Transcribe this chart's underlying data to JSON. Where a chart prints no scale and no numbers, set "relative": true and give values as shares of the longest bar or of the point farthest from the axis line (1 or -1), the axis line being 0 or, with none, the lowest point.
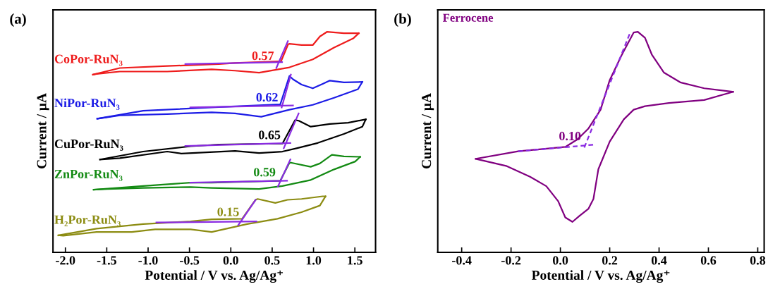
{
  "chart_data": [
    {
      "type": "line",
      "title": "(a)",
      "xlabel": "Potential / V vs. Ag/Ag⁺",
      "ylabel": "Current / μA",
      "relative": true,
      "legend": false,
      "grid": false,
      "xlim": [
        -2.15,
        1.75
      ],
      "xticks": [
        {
          "value": -2,
          "label": "-2.0"
        },
        {
          "value": -1.5,
          "label": "-1.5"
        },
        {
          "value": -1,
          "label": "-1.0"
        },
        {
          "value": -0.5,
          "label": "-0.5"
        },
        {
          "value": 0,
          "label": "0.0"
        },
        {
          "value": 0.5,
          "label": "0.5"
        },
        {
          "value": 1,
          "label": "1.0"
        },
        {
          "value": 1.5,
          "label": "1.5"
        }
      ],
      "annotations": [
        {
          "text": "0.57",
          "x": 0.57,
          "y": 0.847
        },
        {
          "text": "0.62",
          "x": 0.62,
          "y": 0.659
        },
        {
          "text": "0.65",
          "x": 0.65,
          "y": 0.488
        },
        {
          "text": "0.59",
          "x": 0.59,
          "y": 0.319
        },
        {
          "text": "0.15",
          "x": 0.15,
          "y": 0.139
        }
      ],
      "series": [
        {
          "name": "CoPor-RuN₃",
          "color": "#ee1c1c",
          "x": [
            -1.667,
            -1.342,
            -0.769,
            -0.145,
            0.051,
            0.564,
            0.607,
            0.692,
            0.709,
            0.855,
            0.991,
            1.077,
            1.162,
            1.368,
            1.547
          ],
          "values": [
            0.806,
            0.836,
            0.845,
            0.854,
            0.859,
            0.866,
            0.866,
            0.943,
            0.946,
            0.94,
            0.94,
            0.979,
            1.0,
            0.994,
            0.994
          ]
        },
        {
          "color": "#ee1c1c",
          "x": [
            -1.667,
            -1.624,
            -1.342,
            -0.769,
            -0.231,
            0.051,
            0.342,
            0.709,
            0.991,
            1.248,
            1.479,
            1.547
          ],
          "values": [
            0.806,
            0.809,
            0.82,
            0.82,
            0.83,
            0.824,
            0.815,
            0.839,
            0.875,
            0.929,
            0.97,
            0.994
          ]
        },
        {
          "name": "NiPor-RuN₃",
          "color": "#1c1ce6",
          "x": [
            -1.615,
            -1.06,
            -0.145,
            0.051,
            0.598,
            0.709,
            0.752,
            0.855,
            0.991,
            1.111,
            1.197,
            1.368,
            1.59
          ],
          "values": [
            0.606,
            0.642,
            0.659,
            0.662,
            0.671,
            0.8,
            0.785,
            0.761,
            0.744,
            0.764,
            0.779,
            0.771,
            0.773
          ]
        },
        {
          "color": "#1c1ce6",
          "x": [
            -1.615,
            -1.342,
            -0.769,
            -0.231,
            0.051,
            0.368,
            0.709,
            0.991,
            1.248,
            1.538,
            1.59
          ],
          "values": [
            0.606,
            0.621,
            0.627,
            0.635,
            0.63,
            0.615,
            0.647,
            0.669,
            0.701,
            0.74,
            0.773
          ]
        },
        {
          "name": "CuPor-RuN₃",
          "color": "#000000",
          "x": [
            -1.581,
            -1.06,
            -0.487,
            -0.145,
            0.624,
            0.778,
            0.821,
            0.966,
            1.077,
            1.197,
            1.419,
            1.632
          ],
          "values": [
            0.421,
            0.457,
            0.481,
            0.489,
            0.493,
            0.6,
            0.597,
            0.57,
            0.576,
            0.582,
            0.588,
            0.603
          ]
        },
        {
          "color": "#000000",
          "x": [
            -1.581,
            -1.342,
            -0.769,
            -0.598,
            0.051,
            0.342,
            0.624,
            0.795,
            1.051,
            1.368,
            1.59,
            1.632
          ],
          "values": [
            0.421,
            0.427,
            0.457,
            0.448,
            0.46,
            0.45,
            0.457,
            0.472,
            0.496,
            0.537,
            0.57,
            0.603
          ]
        },
        {
          "name": "ZnPor-RuN₃",
          "color": "#138a13",
          "x": [
            -1.658,
            -1.06,
            -0.487,
            -0.231,
            0.598,
            0.709,
            0.735,
            0.966,
            1.077,
            1.222,
            1.368,
            1.564
          ],
          "values": [
            0.284,
            0.301,
            0.316,
            0.316,
            0.325,
            0.406,
            0.406,
            0.388,
            0.403,
            0.442,
            0.435,
            0.433
          ]
        },
        {
          "color": "#138a13",
          "x": [
            -1.658,
            -1.487,
            -1.06,
            -0.487,
            -0.231,
            0.342,
            0.624,
            0.966,
            1.248,
            1.504,
            1.564
          ],
          "values": [
            0.284,
            0.287,
            0.292,
            0.296,
            0.292,
            0.287,
            0.301,
            0.328,
            0.376,
            0.412,
            0.433
          ]
        },
        {
          "name": "H₂Por-RuN₃",
          "color": "#8c8c12",
          "x": [
            -2.085,
            -1.624,
            -1.06,
            -0.487,
            -0.231,
            0.137,
            0.299,
            0.325,
            0.538,
            0.684,
            0.855,
            1.111,
            1.145
          ],
          "values": [
            0.077,
            0.107,
            0.128,
            0.14,
            0.15,
            0.152,
            0.238,
            0.242,
            0.224,
            0.238,
            0.242,
            0.254,
            0.254
          ]
        },
        {
          "color": "#8c8c12",
          "x": [
            -2.085,
            -2.026,
            -1.624,
            -1.197,
            -0.915,
            -0.487,
            -0.231,
            0.197,
            0.564,
            0.855,
            1.077,
            1.145
          ],
          "values": [
            0.077,
            0.075,
            0.092,
            0.092,
            0.104,
            0.104,
            0.092,
            0.128,
            0.152,
            0.182,
            0.212,
            0.254
          ]
        },
        {
          "color": "#8a2be2",
          "x": [
            -0.55,
            0.62
          ],
          "values": [
            0.854,
            0.863
          ]
        },
        {
          "color": "#8a2be2",
          "x": [
            0.55,
            0.69
          ],
          "values": [
            0.836,
            0.958
          ]
        },
        {
          "color": "#8a2be2",
          "x": [
            -0.49,
            0.752
          ],
          "values": [
            0.657,
            0.666
          ]
        },
        {
          "color": "#8a2be2",
          "x": [
            0.615,
            0.726
          ],
          "values": [
            0.657,
            0.806
          ]
        },
        {
          "color": "#8a2be2",
          "x": [
            -0.55,
            0.72
          ],
          "values": [
            0.482,
            0.496
          ]
        },
        {
          "color": "#8a2be2",
          "x": [
            0.64,
            0.82
          ],
          "values": [
            0.472,
            0.63
          ]
        },
        {
          "color": "#8a2be2",
          "x": [
            -0.49,
            0.68
          ],
          "values": [
            0.316,
            0.325
          ]
        },
        {
          "color": "#8a2be2",
          "x": [
            0.57,
            0.72
          ],
          "values": [
            0.299,
            0.421
          ]
        },
        {
          "color": "#8a2be2",
          "x": [
            -0.9,
            0.31
          ],
          "values": [
            0.135,
            0.14
          ]
        },
        {
          "color": "#8a2be2",
          "x": [
            0.09,
            0.3
          ],
          "values": [
            0.123,
            0.238
          ]
        }
      ]
    },
    {
      "type": "line",
      "title": "(b)",
      "xlabel": "Potential / V vs. Ag/Ag⁺",
      "ylabel": "Current / μA",
      "relative": true,
      "legend": false,
      "grid": false,
      "xlim": [
        -0.497,
        0.826
      ],
      "xticks": [
        {
          "value": -0.4,
          "label": "-0.4"
        },
        {
          "value": -0.2,
          "label": "-0.2"
        },
        {
          "value": 0,
          "label": "0.0"
        },
        {
          "value": 0.2,
          "label": "0.2"
        },
        {
          "value": 0.4,
          "label": "0.4"
        },
        {
          "value": 0.6,
          "label": "0.6"
        },
        {
          "value": 0.8,
          "label": "0.8"
        }
      ],
      "annotations": [
        {
          "text": "0.10",
          "x": 0.1,
          "y": 0.483
        }
      ],
      "series": [
        {
          "name": "Ferrocene",
          "color": "#800080",
          "x": [
            -0.343,
            -0.171,
            0.02,
            0.069,
            0.114,
            0.163,
            0.2,
            0.249,
            0.297,
            0.314,
            0.343,
            0.371,
            0.42,
            0.486,
            0.583,
            0.7
          ],
          "values": [
            0.424,
            0.458,
            0.478,
            0.512,
            0.562,
            0.647,
            0.781,
            0.896,
            0.997,
            1.0,
            0.973,
            0.896,
            0.815,
            0.771,
            0.744,
            0.728
          ]
        },
        {
          "color": "#800080",
          "x": [
            -0.343,
            -0.217,
            -0.123,
            -0.057,
            -0.009,
            0.02,
            0.049,
            0.077,
            0.114,
            0.134,
            0.154,
            0.2,
            0.257,
            0.297,
            0.343,
            0.44,
            0.583,
            0.7
          ],
          "values": [
            0.424,
            0.391,
            0.343,
            0.3,
            0.232,
            0.158,
            0.138,
            0.165,
            0.198,
            0.242,
            0.377,
            0.502,
            0.603,
            0.647,
            0.663,
            0.677,
            0.691,
            0.728
          ]
        },
        {
          "color": "#8a2be2",
          "line_style": "dashed",
          "x": [
            -0.171,
            0.134
          ],
          "values": [
            0.458,
            0.488
          ]
        },
        {
          "color": "#8a2be2",
          "line_style": "dashed",
          "x": [
            0.097,
            0.283
          ],
          "values": [
            0.475,
            0.997
          ]
        }
      ]
    }
  ]
}
